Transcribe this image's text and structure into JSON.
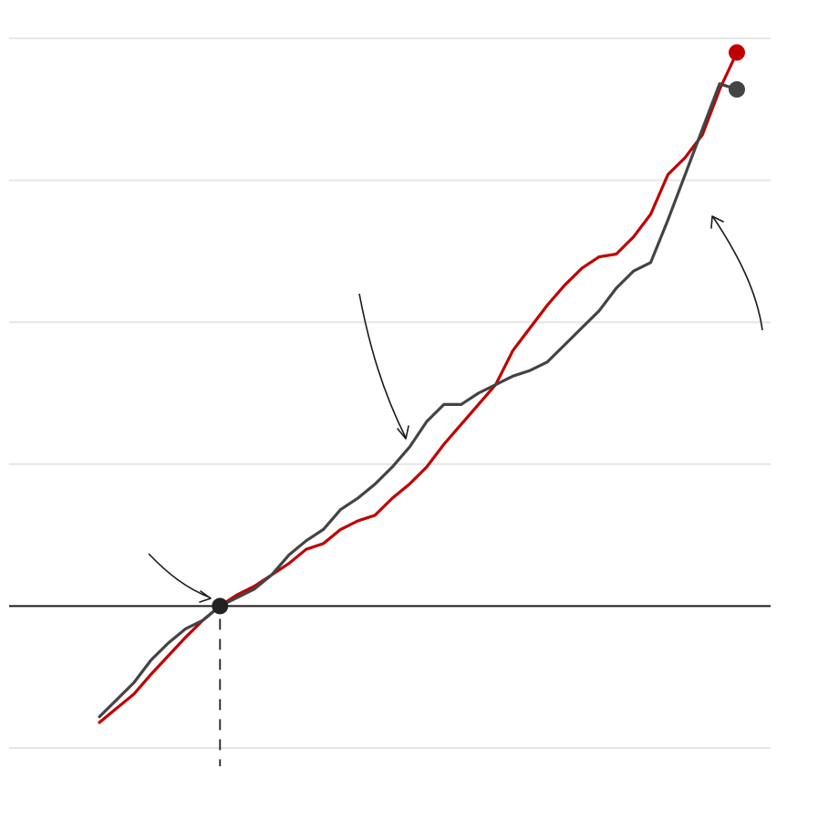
{
  "chart_data": {
    "type": "line",
    "title": "",
    "xlabel": "",
    "ylabel": "",
    "xlim": [
      -7,
      30
    ],
    "ylim": [
      -10,
      40
    ],
    "grid": "horizontal",
    "gridlines": [
      -10,
      0,
      10,
      20,
      30,
      40
    ],
    "baseline_y": 0,
    "reference_x": 0,
    "series": [
      {
        "color": "#c00000",
        "x": [
          -7,
          -6,
          -5,
          -4,
          -3,
          -2,
          -1,
          0,
          1,
          2,
          3,
          4,
          5,
          6,
          7,
          8,
          9,
          10,
          11,
          12,
          13,
          14,
          15,
          16,
          17,
          18,
          19,
          20,
          21,
          22,
          23,
          24,
          25,
          26,
          27,
          28,
          29,
          30
        ],
        "y": [
          -8.2,
          -7.2,
          -6.2,
          -4.8,
          -3.5,
          -2.2,
          -1.0,
          0.0,
          0.8,
          1.4,
          2.2,
          3.0,
          4.0,
          4.4,
          5.4,
          6.0,
          6.4,
          7.6,
          8.6,
          9.8,
          11.4,
          12.8,
          14.2,
          15.6,
          18.0,
          19.6,
          21.2,
          22.6,
          23.8,
          24.6,
          24.8,
          26.0,
          27.6,
          30.4,
          31.6,
          33.2,
          36.4,
          39.0
        ],
        "end_marker": true
      },
      {
        "color": "#444444",
        "x": [
          -7,
          -6,
          -5,
          -4,
          -3,
          -2,
          -1,
          0,
          1,
          2,
          3,
          4,
          5,
          6,
          7,
          8,
          9,
          10,
          11,
          12,
          13,
          14,
          15,
          16,
          17,
          18,
          19,
          20,
          21,
          22,
          23,
          24,
          25,
          26,
          27,
          28,
          29,
          30
        ],
        "y": [
          -7.8,
          -6.6,
          -5.4,
          -3.8,
          -2.6,
          -1.6,
          -1.0,
          0.0,
          0.6,
          1.2,
          2.2,
          3.6,
          4.6,
          5.4,
          6.8,
          7.6,
          8.6,
          9.8,
          11.2,
          13.0,
          14.2,
          14.2,
          15.0,
          15.6,
          16.2,
          16.6,
          17.2,
          18.4,
          19.6,
          20.8,
          22.4,
          23.6,
          24.2,
          27.2,
          30.4,
          33.6,
          36.8,
          36.4
        ],
        "end_marker": true
      }
    ],
    "marker": {
      "x": 0,
      "y": 0,
      "color": "#222222"
    },
    "annotations": [
      {
        "target": "marker",
        "label": ""
      },
      {
        "target": "series-1-middle",
        "label": ""
      },
      {
        "target": "series-1-end",
        "label": ""
      }
    ]
  }
}
